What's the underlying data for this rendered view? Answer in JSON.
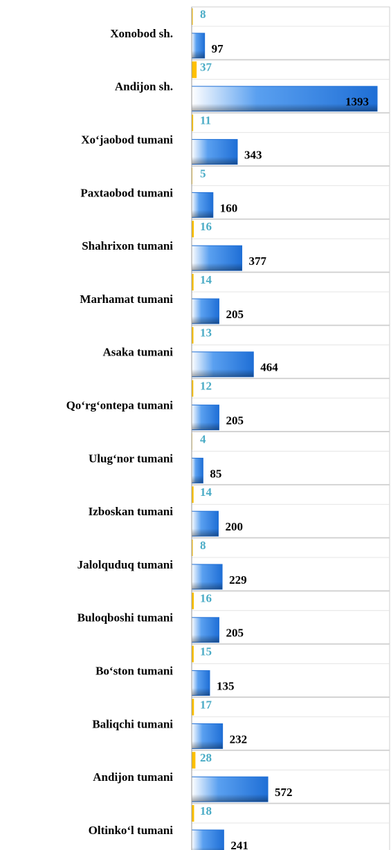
{
  "chart_data": {
    "type": "hbar",
    "categories": [
      "Xonobod sh.",
      "Andijon sh.",
      "Xo‘jaobod tumani",
      "Paxtaobod tumani",
      "Shahrixon tumani",
      "Marhamat tumani",
      "Asaka tumani",
      "Qo‘rg‘ontepa tumani",
      "Ulug‘nor tumani",
      "Izboskan tumani",
      "Jalolquduq tumani",
      "Buloqboshi tumani",
      "Bo‘ston tumani",
      "Baliqchi tumani",
      "Andijon tumani",
      "Oltinko‘l tumani"
    ],
    "series": [
      {
        "color": "#ffc000",
        "label_color": "#4bacc6",
        "values": [
          8,
          37,
          11,
          5,
          16,
          14,
          13,
          12,
          4,
          14,
          8,
          16,
          15,
          17,
          28,
          18
        ]
      },
      {
        "color": "#1f6fd6",
        "label_color": "#000000",
        "values": [
          97,
          1393,
          343,
          160,
          377,
          205,
          464,
          205,
          85,
          200,
          229,
          205,
          135,
          232,
          572,
          241
        ]
      }
    ],
    "xlim": [
      0,
      1450
    ]
  }
}
